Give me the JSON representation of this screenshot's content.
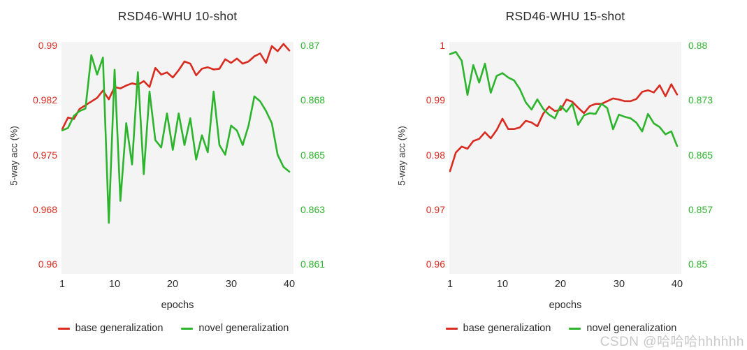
{
  "watermark": "CSDN @哈哈哈hhhhhh",
  "colors": {
    "base": "#d92b20",
    "novel": "#2db42d",
    "plot_background": "#f4f4f4",
    "axis_text": "#2a2a2a",
    "watermark": "#c9c9c9"
  },
  "chart_data": [
    {
      "type": "line",
      "title": "RSD46-WHU 10-shot",
      "xlabel": "epochs",
      "ylabel": "5-way acc (%)",
      "grid": false,
      "legend_position": "bottom",
      "x_ticks": [
        "1",
        "10",
        "20",
        "30",
        "40"
      ],
      "x": [
        1,
        2,
        3,
        4,
        5,
        6,
        7,
        8,
        9,
        10,
        11,
        12,
        13,
        14,
        15,
        16,
        17,
        18,
        19,
        20,
        21,
        22,
        23,
        24,
        25,
        26,
        27,
        28,
        29,
        30,
        31,
        32,
        33,
        34,
        35,
        36,
        37,
        38,
        39,
        40
      ],
      "left_axis": {
        "label_color": "#d92b20",
        "range": [
          0.96,
          0.99
        ],
        "ticks": [
          "0.99",
          "0.982",
          "0.975",
          "0.968",
          "0.96"
        ]
      },
      "right_axis": {
        "label_color": "#2db42d",
        "range": [
          0.861,
          0.87
        ],
        "ticks": [
          "0.87",
          "0.868",
          "0.865",
          "0.863",
          "0.861"
        ]
      },
      "series": [
        {
          "name": "base generalization",
          "axis": "left",
          "color": "#d92b20",
          "values": [
            0.9785,
            0.9801,
            0.9799,
            0.9813,
            0.9818,
            0.9823,
            0.9828,
            0.9838,
            0.9826,
            0.9843,
            0.9841,
            0.9845,
            0.9848,
            0.9846,
            0.9851,
            0.9843,
            0.9869,
            0.986,
            0.9863,
            0.9856,
            0.9866,
            0.9878,
            0.9875,
            0.9859,
            0.9868,
            0.987,
            0.9867,
            0.9868,
            0.9881,
            0.9876,
            0.9882,
            0.9875,
            0.9878,
            0.9885,
            0.9889,
            0.9876,
            0.9899,
            0.9892,
            0.9902,
            0.9893
          ]
        },
        {
          "name": "novel generalization",
          "axis": "right",
          "color": "#2db42d",
          "values": [
            0.8665,
            0.8666,
            0.8671,
            0.8673,
            0.8674,
            0.8696,
            0.8688,
            0.8695,
            0.8627,
            0.869,
            0.8636,
            0.8668,
            0.8651,
            0.8689,
            0.8647,
            0.8681,
            0.8661,
            0.8658,
            0.8672,
            0.8657,
            0.8672,
            0.8659,
            0.867,
            0.8653,
            0.8663,
            0.8656,
            0.8681,
            0.8659,
            0.8655,
            0.8667,
            0.8665,
            0.8659,
            0.8667,
            0.8679,
            0.8677,
            0.8673,
            0.8668,
            0.8655,
            0.865,
            0.8648
          ]
        }
      ]
    },
    {
      "type": "line",
      "title": "RSD46-WHU 15-shot",
      "xlabel": "epochs",
      "ylabel": "5-way acc (%)",
      "grid": false,
      "legend_position": "bottom",
      "x_ticks": [
        "1",
        "10",
        "20",
        "30",
        "40"
      ],
      "x": [
        1,
        2,
        3,
        4,
        5,
        6,
        7,
        8,
        9,
        10,
        11,
        12,
        13,
        14,
        15,
        16,
        17,
        18,
        19,
        20,
        21,
        22,
        23,
        24,
        25,
        26,
        27,
        28,
        29,
        30,
        31,
        32,
        33,
        34,
        35,
        36,
        37,
        38,
        39,
        40
      ],
      "left_axis": {
        "label_color": "#d92b20",
        "range": [
          0.96,
          1.0
        ],
        "ticks": [
          "1",
          "0.99",
          "0.98",
          "0.97",
          "0.96"
        ]
      },
      "right_axis": {
        "label_color": "#2db42d",
        "range": [
          0.85,
          0.88
        ],
        "ticks": [
          "0.88",
          "0.873",
          "0.865",
          "0.857",
          "0.85"
        ]
      },
      "series": [
        {
          "name": "base generalization",
          "axis": "left",
          "color": "#d92b20",
          "values": [
            0.977,
            0.9804,
            0.9815,
            0.9811,
            0.9825,
            0.9829,
            0.9841,
            0.983,
            0.9845,
            0.9866,
            0.9847,
            0.9847,
            0.985,
            0.9862,
            0.9859,
            0.9852,
            0.9875,
            0.9888,
            0.988,
            0.9882,
            0.9901,
            0.9897,
            0.9886,
            0.9876,
            0.9889,
            0.9893,
            0.9893,
            0.9898,
            0.9903,
            0.9901,
            0.9898,
            0.9898,
            0.9902,
            0.9915,
            0.9918,
            0.9914,
            0.9927,
            0.9907,
            0.9929,
            0.991
          ]
        },
        {
          "name": "novel generalization",
          "axis": "right",
          "color": "#2db42d",
          "values": [
            0.8788,
            0.8791,
            0.8779,
            0.8732,
            0.8773,
            0.8749,
            0.8775,
            0.8735,
            0.8758,
            0.8762,
            0.8756,
            0.8752,
            0.874,
            0.8722,
            0.8712,
            0.8726,
            0.8713,
            0.8705,
            0.87,
            0.8717,
            0.8709,
            0.872,
            0.8691,
            0.8704,
            0.8707,
            0.8706,
            0.872,
            0.8714,
            0.8685,
            0.8705,
            0.8702,
            0.87,
            0.8694,
            0.8682,
            0.8706,
            0.8693,
            0.8688,
            0.8678,
            0.8682,
            0.8662
          ]
        }
      ]
    }
  ]
}
